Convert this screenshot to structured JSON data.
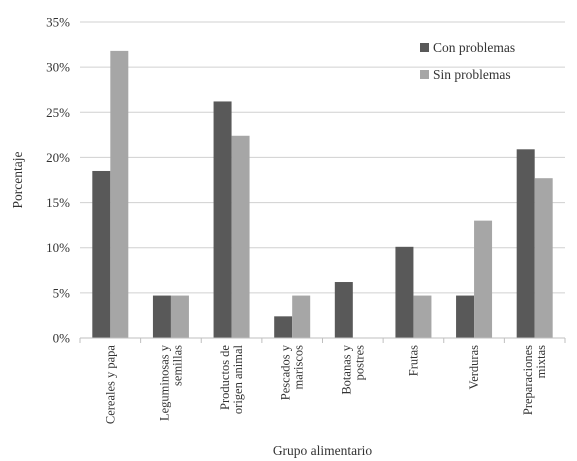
{
  "chart_data": {
    "type": "bar",
    "categories": [
      [
        "Cereales y papa"
      ],
      [
        "Leguminosas y",
        "semillas"
      ],
      [
        "Productos de",
        "origen animal"
      ],
      [
        "Pescados y",
        "mariscos"
      ],
      [
        "Botanas y",
        "postres"
      ],
      [
        "Frutas"
      ],
      [
        "Verduras"
      ],
      [
        "Preparaciones",
        "mixtas"
      ]
    ],
    "series": [
      {
        "name": "Con problemas",
        "color": "#595959",
        "values": [
          18.5,
          4.7,
          26.2,
          2.4,
          6.2,
          10.1,
          4.7,
          20.9
        ]
      },
      {
        "name": "Sin problemas",
        "color": "#a6a6a6",
        "values": [
          31.8,
          4.7,
          22.4,
          4.7,
          0,
          4.7,
          13.0,
          17.7
        ]
      }
    ],
    "yticks": [
      "0%",
      "5%",
      "10%",
      "15%",
      "20%",
      "25%",
      "30%",
      "35%"
    ],
    "ylim": [
      0,
      35
    ],
    "xlabel": "Grupo alimentario",
    "ylabel": "Porcentaje",
    "grid": true,
    "legend_position": "top-right"
  }
}
